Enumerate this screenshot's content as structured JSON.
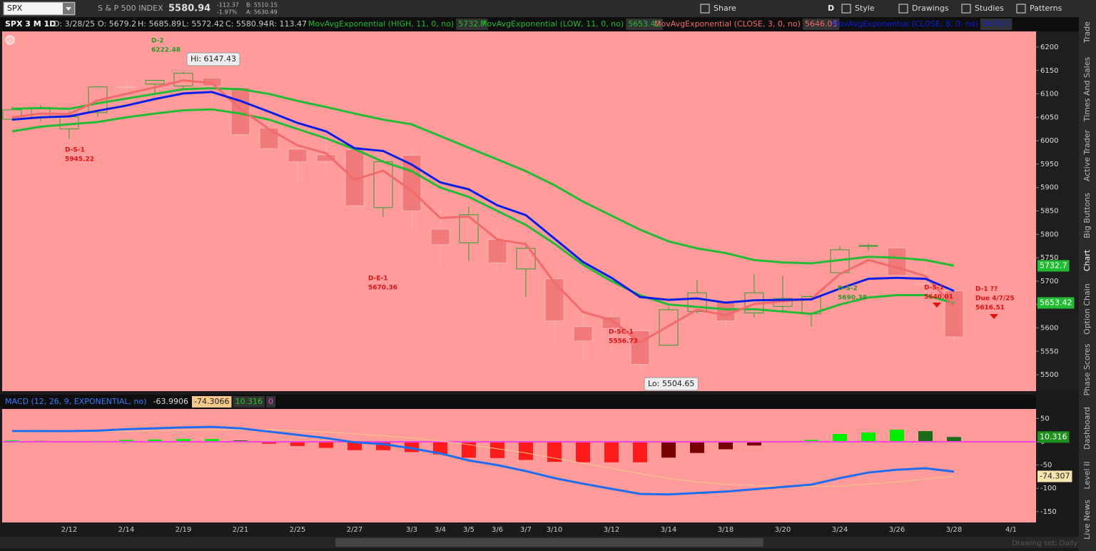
{
  "toolbar": {
    "symbol": "SPX",
    "name": "S & P 500 INDEX",
    "last": "5580.94",
    "change": "-112.37",
    "change_pct": "-1.97%",
    "bid": "B: 5510.15",
    "ask": "A: 5630.49",
    "aggregation": "D",
    "buttons": [
      "Share",
      "Style",
      "Drawings",
      "Studies",
      "Patterns"
    ]
  },
  "header": {
    "items": [
      "SPX 3 M 1D",
      "D: 3/28/25",
      "O: 5679.2",
      "H: 5685.89",
      "L: 5572.42",
      "C: 5580.94",
      "R: 113.47"
    ]
  },
  "chart_data": [
    {
      "type": "candlestick",
      "categories": [
        null,
        null,
        "2/12",
        null,
        "2/14",
        null,
        "2/19",
        null,
        "2/21",
        null,
        "2/25",
        null,
        "2/27",
        null,
        "3/3",
        "3/4",
        "3/5",
        "3/6",
        "3/7",
        "3/10",
        null,
        "3/12",
        null,
        "3/14",
        null,
        "3/18",
        null,
        "3/20",
        null,
        "3/24",
        null,
        "3/26",
        null,
        "3/28",
        null,
        "4/1"
      ],
      "open": [
        6046,
        6049,
        6025,
        6060,
        6115,
        6121,
        6117,
        6134,
        6114,
        6027,
        5982,
        5970,
        5981,
        5857,
        5969,
        5811,
        5782,
        5789,
        5726,
        5705,
        5603,
        5624,
        5594,
        5563,
        5635,
        5655,
        5632,
        5646,
        5630,
        5718,
        5776,
        5771,
        5695,
        5679.2,
        null,
        null
      ],
      "high": [
        6073,
        6076,
        6063,
        6116,
        6127,
        6129,
        6147.43,
        6134,
        6114,
        6043,
        5992,
        6009,
        5994,
        5959,
        5987,
        5865,
        5860,
        5812,
        5783,
        5705,
        5636,
        5642,
        5597,
        5645,
        5703,
        5659,
        5715,
        5711,
        5670,
        5775,
        5781,
        5784,
        5732,
        5685.89,
        null,
        null
      ],
      "low": [
        6044,
        6042,
        6003,
        6051,
        6107,
        6099,
        6111,
        6084,
        6008,
        5977,
        5908,
        5932,
        5858,
        5837,
        5810,
        5732,
        5743,
        5711,
        5666,
        5564,
        5528,
        5546,
        5504.65,
        5563,
        5631,
        5597,
        5622,
        5632,
        5603,
        5718,
        5765,
        5703,
        5671,
        5572.42,
        null,
        null
      ],
      "close": [
        6066,
        6068,
        6051,
        6115,
        6114,
        6129,
        6144,
        6117,
        6013,
        5983,
        5955,
        5956,
        5861,
        5955,
        5850,
        5778,
        5842,
        5739,
        5770,
        5615,
        5572,
        5599,
        5522,
        5639,
        5675,
        5615,
        5675,
        5663,
        5667,
        5767,
        5776,
        5712,
        5693,
        5580.94,
        null,
        null
      ],
      "up_color": "#2f9e2f",
      "down_color": "#f5b3b3",
      "down_fill": "#f07a7a",
      "background": "#ff9b9b",
      "series": [
        {
          "name": "MovAvgExponential (HIGH, 11, 0, no)",
          "color": "#22bb33",
          "legend_value": 5732.7,
          "values": [
            6068,
            6070,
            6068,
            6080,
            6090,
            6100,
            6110,
            6112,
            6110,
            6100,
            6085,
            6072,
            6058,
            6045,
            6035,
            6010,
            5985,
            5960,
            5935,
            5905,
            5870,
            5840,
            5810,
            5785,
            5770,
            5760,
            5745,
            5740,
            5738,
            5745,
            5752,
            5750,
            5745,
            5733,
            null,
            null
          ]
        },
        {
          "name": "MovAvgExponential (LOW, 11, 0, no)",
          "color": "#22bb33",
          "legend_value": 5653.42,
          "values": [
            6020,
            6030,
            6035,
            6040,
            6050,
            6058,
            6065,
            6067,
            6058,
            6045,
            6025,
            6005,
            5982,
            5955,
            5935,
            5900,
            5880,
            5850,
            5820,
            5780,
            5735,
            5700,
            5670,
            5650,
            5645,
            5640,
            5640,
            5635,
            5630,
            5650,
            5665,
            5670,
            5670,
            5653,
            null,
            null
          ]
        },
        {
          "name": "MovAvgExponential (CLOSE, 3, 0, no)",
          "color": "#f26a6a",
          "legend_value": 5646.05,
          "values": [
            6050,
            6058,
            6057,
            6086,
            6100,
            6114,
            6129,
            6123,
            6068,
            6025,
            5990,
            5973,
            5917,
            5936,
            5893,
            5835,
            5838,
            5789,
            5779,
            5697,
            5634,
            5617,
            5569,
            5604,
            5639,
            5627,
            5651,
            5657,
            5662,
            5715,
            5745,
            5729,
            5711,
            5646,
            null,
            null
          ]
        },
        {
          "name": "MovAvgExponential (CLOSE, 8, 0, no)",
          "color": "#0a1ee6",
          "legend_value": 5678.5,
          "values": [
            6045,
            6050,
            6052,
            6064,
            6075,
            6089,
            6101,
            6104,
            6085,
            6062,
            6038,
            6020,
            5984,
            5978,
            5949,
            5911,
            5896,
            5862,
            5841,
            5791,
            5741,
            5707,
            5666,
            5660,
            5663,
            5654,
            5659,
            5660,
            5661,
            5684,
            5705,
            5707,
            5705,
            5679,
            null,
            null
          ]
        }
      ],
      "ylim": [
        5465,
        6233.5
      ],
      "yticks": [
        5500,
        5550,
        5600,
        5650,
        5700,
        5750,
        5800,
        5850,
        5900,
        5950,
        6000,
        6050,
        6100,
        6150,
        6200
      ],
      "hi_label": "Hi: 6147.43",
      "lo_label": "Lo: 5504.65",
      "annotations": [
        {
          "label": "D-2",
          "value": 6222.48,
          "color": "#2a9a2a"
        },
        {
          "label": "D-S-1",
          "value": 5945.22,
          "color": "#e01010"
        },
        {
          "label": "D-E-1",
          "value": 5670.36,
          "color": "#e01010"
        },
        {
          "label": "D-SC-1",
          "value": 5556.73,
          "color": "#e01010"
        },
        {
          "label": "D-S-2",
          "value": 5690.38,
          "color": "#2a9a2a"
        },
        {
          "label": "D-S-1",
          "value": 5640.01,
          "color": "#e01010"
        },
        {
          "label": "D-1 ??",
          "due": "Due 4/7/25",
          "value": 5616.51,
          "color": "#e01010"
        }
      ]
    },
    {
      "type": "macd",
      "legend": "MACD (12, 26, 9, EXPONENTIAL, no)",
      "value": {
        "color": "#1e6cf0",
        "legend_value": -63.9906,
        "values": [
          23,
          23,
          23,
          24,
          27,
          29,
          31,
          32,
          29,
          22,
          15,
          8,
          -1,
          -5,
          -14,
          -25,
          -40,
          -50,
          -63,
          -78,
          -90,
          -101,
          -112,
          -113,
          -110,
          -107,
          -102,
          -97,
          -92,
          -78,
          -66,
          -60,
          -57,
          -63.9906,
          null,
          null
        ]
      },
      "avg": {
        "color": "#f5c98a",
        "legend_value": -74.3066,
        "tag": -74.307,
        "values": [
          20,
          21,
          22,
          22,
          23,
          24,
          25,
          26,
          26,
          26,
          24,
          21,
          17,
          13,
          8,
          2,
          -6,
          -15,
          -24,
          -35,
          -46,
          -57,
          -68,
          -79,
          -86,
          -91,
          -94,
          -96,
          -96,
          -95,
          -91,
          -86,
          -80,
          -74.3066,
          null,
          null
        ]
      },
      "diff": {
        "legend_value": 10.316,
        "values": [
          3,
          2,
          1,
          2,
          4,
          5,
          6,
          6,
          3,
          -4,
          -9,
          -13,
          -18,
          -18,
          -22,
          -27,
          -34,
          -35,
          -39,
          -43,
          -44,
          -44,
          -44,
          -34,
          -24,
          -16,
          -8,
          -1,
          4,
          17,
          20,
          26,
          23,
          10.316,
          null,
          null
        ],
        "colors": {
          "positive_up": "#00ee00",
          "positive_down": "#1a6b1a",
          "negative_down": "#ff1a1a",
          "negative_up": "#7a0000"
        }
      },
      "zero_line": 0,
      "zero_color": "#ff44dd",
      "ylim": [
        -173.3,
        70.6
      ],
      "yticks": [
        -150,
        -100,
        -50,
        0,
        50
      ]
    }
  ],
  "sidebar": [
    "Trade",
    "Times And Sales",
    "Active Trader",
    "Big Buttons",
    "Chart",
    "Option Chain",
    "Phase Scores",
    "Dashboard",
    "Level II",
    "Live News"
  ],
  "status": "Drawing set: Daily"
}
